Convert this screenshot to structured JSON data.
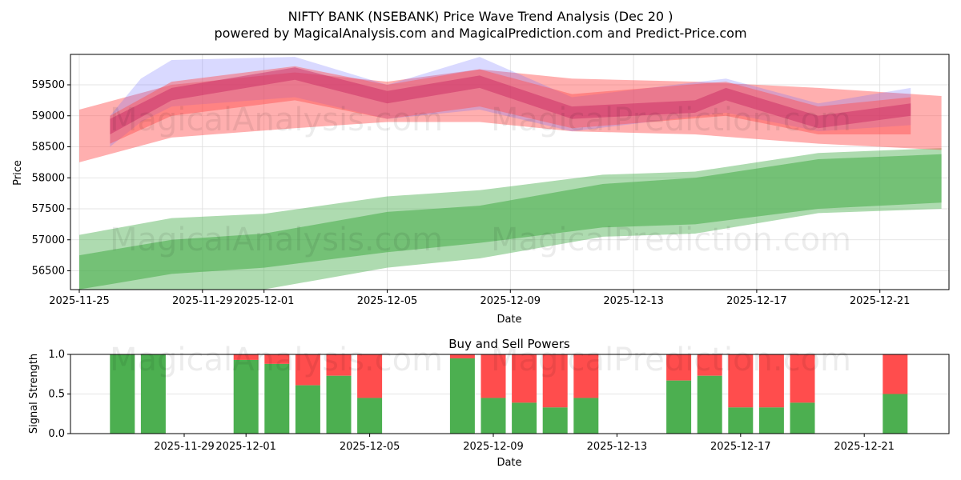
{
  "title": "NIFTY BANK (NSEBANK) Price Wave Trend Analysis (Dec 20 )",
  "subtitle": "powered by MagicalAnalysis.com and MagicalPrediction.com and Predict-Price.com",
  "watermarks": [
    "MagicalAnalysis.com",
    "MagicalPrediction.com"
  ],
  "chart_data": [
    {
      "type": "area",
      "title": "",
      "xlabel": "Date",
      "ylabel": "Price",
      "ylim": [
        56200,
        59950
      ],
      "yticks": [
        56500,
        57000,
        57500,
        58000,
        58500,
        59000,
        59500
      ],
      "xticks": [
        "2025-11-25",
        "2025-11-29",
        "2025-12-01",
        "2025-12-05",
        "2025-12-09",
        "2025-12-13",
        "2025-12-17",
        "2025-12-21"
      ],
      "grid": true,
      "bands": [
        {
          "name": "support-outer",
          "color": "#4caf50",
          "opacity": 0.45,
          "x": [
            "2025-11-25",
            "2025-11-28",
            "2025-12-01",
            "2025-12-05",
            "2025-12-08",
            "2025-12-12",
            "2025-12-15",
            "2025-12-19",
            "2025-12-23"
          ],
          "upper": [
            57080,
            57350,
            57420,
            57700,
            57800,
            58050,
            58100,
            58400,
            58480
          ],
          "lower": [
            55800,
            56100,
            56200,
            56550,
            56700,
            57050,
            57100,
            57430,
            57500
          ]
        },
        {
          "name": "support-inner",
          "color": "#4caf50",
          "opacity": 0.6,
          "x": [
            "2025-11-25",
            "2025-11-28",
            "2025-12-01",
            "2025-12-05",
            "2025-12-08",
            "2025-12-12",
            "2025-12-15",
            "2025-12-19",
            "2025-12-23"
          ],
          "upper": [
            56750,
            57000,
            57100,
            57450,
            57550,
            57900,
            58000,
            58300,
            58380
          ],
          "lower": [
            56200,
            56450,
            56550,
            56800,
            56950,
            57200,
            57250,
            57500,
            57600
          ]
        },
        {
          "name": "resistance-outer",
          "color": "#ff4d4d",
          "opacity": 0.45,
          "x": [
            "2025-11-25",
            "2025-11-28",
            "2025-12-02",
            "2025-12-05",
            "2025-12-08",
            "2025-12-11",
            "2025-12-15",
            "2025-12-19",
            "2025-12-23"
          ],
          "upper": [
            59100,
            59500,
            59700,
            59550,
            59750,
            59600,
            59550,
            59450,
            59320
          ],
          "lower": [
            58250,
            58650,
            58800,
            58900,
            58900,
            58750,
            58700,
            58550,
            58450
          ]
        },
        {
          "name": "wave-blue",
          "color": "#6666ff",
          "opacity": 0.25,
          "x": [
            "2025-11-26",
            "2025-11-27",
            "2025-11-28",
            "2025-12-02",
            "2025-12-05",
            "2025-12-08",
            "2025-12-11",
            "2025-12-16",
            "2025-12-19",
            "2025-12-22"
          ],
          "upper": [
            59000,
            59600,
            59900,
            59950,
            59500,
            59950,
            59300,
            59600,
            59200,
            59450
          ],
          "lower": [
            58500,
            58900,
            59150,
            59300,
            58950,
            59100,
            58750,
            59050,
            58750,
            58850
          ]
        },
        {
          "name": "wave-red",
          "color": "#ff4d4d",
          "opacity": 0.45,
          "x": [
            "2025-11-26",
            "2025-11-28",
            "2025-12-02",
            "2025-12-05",
            "2025-12-08",
            "2025-12-11",
            "2025-12-16",
            "2025-12-19",
            "2025-12-22"
          ],
          "upper": [
            59000,
            59550,
            59800,
            59500,
            59750,
            59350,
            59550,
            59150,
            59300
          ],
          "lower": [
            58550,
            59000,
            59250,
            58950,
            59150,
            58800,
            59000,
            58700,
            58700
          ]
        },
        {
          "name": "wave-center",
          "color": "#c2185b",
          "opacity": 0.4,
          "x": [
            "2025-11-26",
            "2025-11-28",
            "2025-12-02",
            "2025-12-05",
            "2025-12-08",
            "2025-12-11",
            "2025-12-15",
            "2025-12-16",
            "2025-12-19",
            "2025-12-22"
          ],
          "upper": [
            58950,
            59450,
            59780,
            59400,
            59650,
            59150,
            59250,
            59450,
            59000,
            59200
          ],
          "lower": [
            58700,
            59250,
            59580,
            59200,
            59450,
            58950,
            59050,
            59250,
            58800,
            59000
          ]
        }
      ]
    },
    {
      "type": "bar",
      "title": "Buy and Sell Powers",
      "xlabel": "Date",
      "ylabel": "Signal Strength",
      "ylim": [
        0,
        1
      ],
      "yticks": [
        "0.0",
        "0.5",
        "1.0"
      ],
      "xticks": [
        "2025-11-29",
        "2025-12-01",
        "2025-12-05",
        "2025-12-09",
        "2025-12-13",
        "2025-12-17",
        "2025-12-21"
      ],
      "colors": {
        "buy": "#4caf50",
        "sell": "#ff4d4d"
      },
      "dates": [
        "2025-11-27",
        "2025-11-28",
        "2025-12-01",
        "2025-12-02",
        "2025-12-03",
        "2025-12-04",
        "2025-12-05",
        "2025-12-08",
        "2025-12-09",
        "2025-12-10",
        "2025-12-11",
        "2025-12-12",
        "2025-12-15",
        "2025-12-16",
        "2025-12-17",
        "2025-12-18",
        "2025-12-19",
        "2025-12-22"
      ],
      "buy": [
        1.0,
        1.0,
        0.93,
        0.88,
        0.61,
        0.73,
        0.45,
        0.95,
        0.45,
        0.39,
        0.33,
        0.45,
        0.67,
        0.73,
        0.33,
        0.33,
        0.39,
        0.5
      ]
    }
  ]
}
